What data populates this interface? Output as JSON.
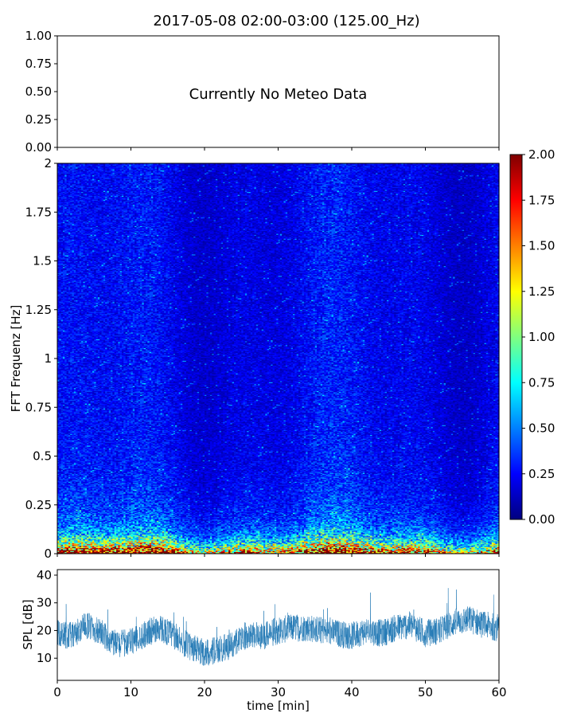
{
  "title": "2017-05-08 02:00-03:00 (125.00_Hz)",
  "chart_data": [
    {
      "type": "line",
      "panel": "meteo",
      "annotation": "Currently No Meteo Data",
      "ylim": [
        0,
        1
      ],
      "ytick_labels": [
        "0.00",
        "0.25",
        "0.50",
        "0.75",
        "1.00"
      ],
      "xlim": [
        0,
        60
      ]
    },
    {
      "type": "heatmap",
      "panel": "spectrogram",
      "ylabel": "FFT Frequenz [Hz]",
      "xlim": [
        0,
        60
      ],
      "ylim": [
        0,
        2
      ],
      "ytick_labels": [
        "0",
        "0.25",
        "0.5",
        "0.75",
        "1",
        "1.25",
        "1.5",
        "1.75",
        "2"
      ],
      "colormap": "jet",
      "colorbar": {
        "range": [
          0,
          2
        ],
        "tick_labels": [
          "0.00",
          "0.25",
          "0.50",
          "0.75",
          "1.00",
          "1.25",
          "1.50",
          "1.75",
          "2.00"
        ]
      },
      "description_values": {
        "time_bins": 240,
        "freq_bins": 400,
        "typical_level_high_freq": 0.25,
        "typical_level_low_freq": 1.6
      }
    },
    {
      "type": "line",
      "panel": "spl",
      "ylabel": "SPL [dB]",
      "xlabel": "time [min]",
      "xlim": [
        0,
        60
      ],
      "ylim": [
        2,
        42
      ],
      "ytick_labels": [
        "10",
        "20",
        "30",
        "40"
      ],
      "xtick_labels": [
        "0",
        "10",
        "20",
        "30",
        "40",
        "50",
        "60"
      ],
      "color": "#1f77b4",
      "series": [
        {
          "x": [
            0,
            2,
            4,
            6,
            8,
            10,
            12,
            14,
            16,
            18,
            20,
            22,
            24,
            26,
            28,
            30,
            32,
            34,
            36,
            38,
            40,
            42,
            44,
            46,
            48,
            50,
            52,
            54,
            56,
            58,
            60
          ],
          "values": [
            19,
            18,
            22,
            19,
            15,
            16,
            19,
            21,
            18,
            14,
            12,
            13,
            15,
            19,
            18,
            20,
            21,
            21,
            20,
            19,
            18,
            20,
            19,
            21,
            22,
            19,
            20,
            23,
            24,
            22,
            21
          ]
        }
      ]
    }
  ]
}
